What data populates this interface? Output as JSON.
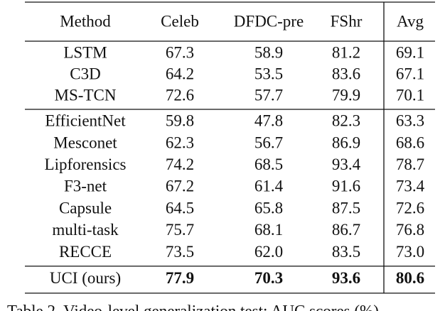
{
  "table": {
    "header": [
      "Method",
      "Celeb",
      "DFDC-pre",
      "FShr",
      "Avg"
    ],
    "groups": [
      [
        [
          "LSTM",
          "67.3",
          "58.9",
          "81.2",
          "69.1"
        ],
        [
          "C3D",
          "64.2",
          "53.5",
          "83.6",
          "67.1"
        ],
        [
          "MS-TCN",
          "72.6",
          "57.7",
          "79.9",
          "70.1"
        ]
      ],
      [
        [
          "EfficientNet",
          "59.8",
          "47.8",
          "82.3",
          "63.3"
        ],
        [
          "Mesconet",
          "62.3",
          "56.7",
          "86.9",
          "68.6"
        ],
        [
          "Lipforensics",
          "74.2",
          "68.5",
          "93.4",
          "78.7"
        ],
        [
          "F3-net",
          "67.2",
          "61.4",
          "91.6",
          "73.4"
        ],
        [
          "Capsule",
          "64.5",
          "65.8",
          "87.5",
          "72.6"
        ],
        [
          "multi-task",
          "75.7",
          "68.1",
          "86.7",
          "76.8"
        ],
        [
          "RECCE",
          "73.5",
          "62.0",
          "83.5",
          "73.0"
        ]
      ],
      [
        [
          "UCI (ours)",
          "77.9",
          "70.3",
          "93.6",
          "80.6"
        ]
      ]
    ]
  },
  "caption": "Table 2. Video-level generalization test: AUC scores (%)"
}
